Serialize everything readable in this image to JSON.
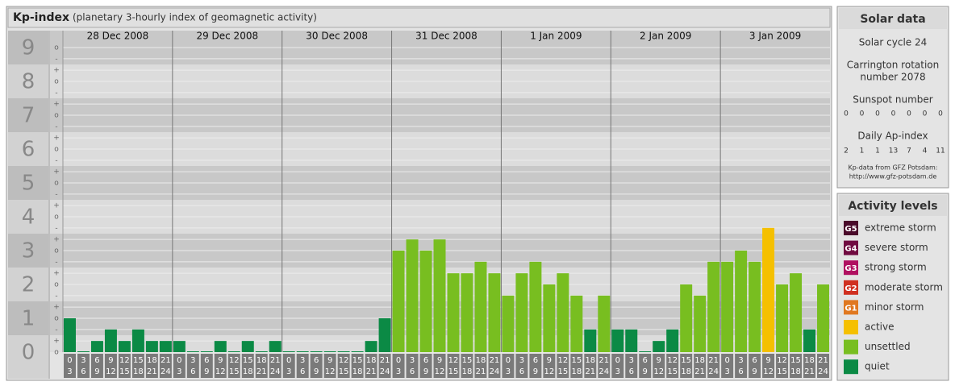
{
  "header": {
    "title": "Kp-index",
    "subtitle": "(planetary 3-hourly index of geomagnetic activity)"
  },
  "chart_data": {
    "type": "bar",
    "ylim": [
      0,
      9.5
    ],
    "yticks": [
      0,
      1,
      2,
      3,
      4,
      5,
      6,
      7,
      8,
      9
    ],
    "ysubticks": [
      {
        "value": 0,
        "label": "o"
      },
      {
        "value": 0.33,
        "label": "+"
      },
      {
        "value": 0.67,
        "label": "-"
      },
      {
        "value": 1,
        "label": "o"
      },
      {
        "value": 1.33,
        "label": "+"
      },
      {
        "value": 1.67,
        "label": "-"
      },
      {
        "value": 2,
        "label": "o"
      },
      {
        "value": 2.33,
        "label": "+"
      },
      {
        "value": 2.67,
        "label": "-"
      },
      {
        "value": 3,
        "label": "o"
      },
      {
        "value": 3.33,
        "label": "+"
      },
      {
        "value": 3.67,
        "label": "-"
      },
      {
        "value": 4,
        "label": "o"
      },
      {
        "value": 4.33,
        "label": "+"
      },
      {
        "value": 4.67,
        "label": "-"
      },
      {
        "value": 5,
        "label": "o"
      },
      {
        "value": 5.33,
        "label": "+"
      },
      {
        "value": 5.67,
        "label": "-"
      },
      {
        "value": 6,
        "label": "o"
      },
      {
        "value": 6.33,
        "label": "+"
      },
      {
        "value": 6.67,
        "label": "-"
      },
      {
        "value": 7,
        "label": "o"
      },
      {
        "value": 7.33,
        "label": "+"
      },
      {
        "value": 7.67,
        "label": "-"
      },
      {
        "value": 8,
        "label": "o"
      },
      {
        "value": 8.33,
        "label": "+"
      },
      {
        "value": 8.67,
        "label": "-"
      },
      {
        "value": 9,
        "label": "o"
      }
    ],
    "hours": [
      "0",
      "3",
      "6",
      "9",
      "12",
      "15",
      "18",
      "21",
      "24"
    ],
    "days": [
      {
        "label": "28 Dec 2008",
        "values": [
          1,
          0,
          0.33,
          0.67,
          0.33,
          0.67,
          0.33,
          0.33
        ],
        "colors": [
          "#0b8a45",
          "#0b8a45",
          "#0b8a45",
          "#0b8a45",
          "#0b8a45",
          "#0b8a45",
          "#0b8a45",
          "#0b8a45"
        ]
      },
      {
        "label": "29 Dec 2008",
        "values": [
          0.33,
          0,
          0,
          0.33,
          0,
          0.33,
          0,
          0.33
        ],
        "colors": [
          "#0b8a45",
          "#0b8a45",
          "#0b8a45",
          "#0b8a45",
          "#0b8a45",
          "#0b8a45",
          "#0b8a45",
          "#0b8a45"
        ]
      },
      {
        "label": "30 Dec 2008",
        "values": [
          0,
          0,
          0,
          0,
          0,
          0,
          0.33,
          1
        ],
        "colors": [
          "#0b8a45",
          "#0b8a45",
          "#0b8a45",
          "#0b8a45",
          "#0b8a45",
          "#0b8a45",
          "#0b8a45",
          "#0b8a45"
        ]
      },
      {
        "label": "31 Dec 2008",
        "values": [
          3,
          3.33,
          3,
          3.33,
          2.33,
          2.33,
          2.67,
          2.33
        ],
        "colors": [
          "#78be20",
          "#78be20",
          "#78be20",
          "#78be20",
          "#78be20",
          "#78be20",
          "#78be20",
          "#78be20"
        ]
      },
      {
        "label": "1 Jan 2009",
        "values": [
          1.67,
          2.33,
          2.67,
          2,
          2.33,
          1.67,
          0.67,
          1.67
        ],
        "colors": [
          "#78be20",
          "#78be20",
          "#78be20",
          "#78be20",
          "#78be20",
          "#78be20",
          "#0b8a45",
          "#78be20"
        ]
      },
      {
        "label": "2 Jan 2009",
        "values": [
          0.67,
          0.67,
          0,
          0.33,
          0.67,
          2,
          1.67,
          2.67
        ],
        "colors": [
          "#0b8a45",
          "#0b8a45",
          "#0b8a45",
          "#0b8a45",
          "#0b8a45",
          "#78be20",
          "#78be20",
          "#78be20"
        ]
      },
      {
        "label": "3 Jan 2009",
        "values": [
          2.67,
          3,
          2.67,
          3.67,
          2,
          2.33,
          0.67,
          2
        ],
        "colors": [
          "#78be20",
          "#78be20",
          "#78be20",
          "#f5c000",
          "#78be20",
          "#78be20",
          "#0b8a45",
          "#78be20"
        ]
      }
    ]
  },
  "solar_data": {
    "title": "Solar data",
    "cycle": "Solar cycle 24",
    "carrington": [
      "Carrington rotation",
      "number 2078"
    ],
    "sunspot_title": "Sunspot number",
    "sunspot": [
      0,
      0,
      0,
      0,
      0,
      0,
      0
    ],
    "ap_title": "Daily Ap-index",
    "ap": [
      2,
      1,
      1,
      13,
      7,
      4,
      11
    ],
    "source": [
      "Kp-data from GFZ Potsdam:",
      "http://www.gfz-potsdam.de"
    ]
  },
  "activity": {
    "title": "Activity levels",
    "levels": [
      {
        "code": "G5",
        "label": "extreme storm",
        "color": "#4a0a2a"
      },
      {
        "code": "G4",
        "label": "severe storm",
        "color": "#700a40"
      },
      {
        "code": "G3",
        "label": "strong storm",
        "color": "#b01060"
      },
      {
        "code": "G2",
        "label": "moderate storm",
        "color": "#d03020"
      },
      {
        "code": "G1",
        "label": "minor storm",
        "color": "#e07820"
      },
      {
        "label": "active",
        "color": "#f5c000"
      },
      {
        "label": "unsettled",
        "color": "#78be20"
      },
      {
        "label": "quiet",
        "color": "#0b8a45"
      }
    ]
  }
}
